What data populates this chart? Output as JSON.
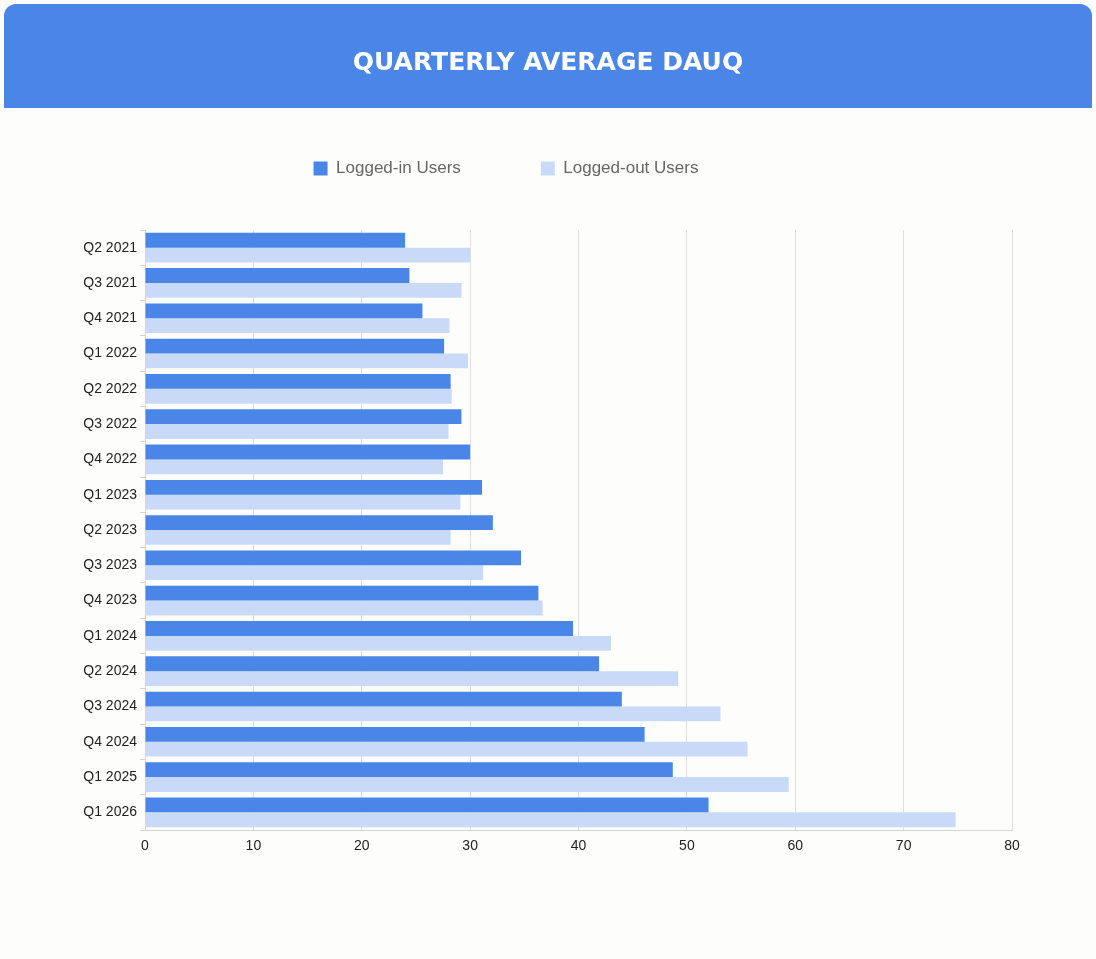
{
  "chart_data": {
    "type": "bar",
    "orientation": "horizontal",
    "title": "QUARTERLY AVERAGE DAUQ",
    "categories": [
      "Q2 2021",
      "Q3 2021",
      "Q4 2021",
      "Q1 2022",
      "Q2 2022",
      "Q3 2022",
      "Q4 2022",
      "Q1 2023",
      "Q2 2023",
      "Q3 2023",
      "Q4 2023",
      "Q1 2024",
      "Q2 2024",
      "Q3 2024",
      "Q4 2024",
      "Q1 2025",
      "Q1 2026"
    ],
    "series": [
      {
        "name": "Logged-in Users",
        "color": "#4a86e8",
        "values": [
          24,
          24.4,
          25.6,
          27.6,
          28.2,
          29.2,
          30,
          31.1,
          32.1,
          34.7,
          36.3,
          39.5,
          41.9,
          44,
          46.1,
          48.7,
          52
        ]
      },
      {
        "name": "Logged-out Users",
        "color": "#c9daf8",
        "values": [
          30,
          29.2,
          28.1,
          29.8,
          28.3,
          28,
          27.5,
          29.1,
          28.2,
          31.2,
          36.7,
          43,
          49.2,
          53.1,
          55.6,
          59.4,
          74.8
        ]
      }
    ],
    "xlim": [
      0,
      80
    ],
    "xticks": [
      0,
      10,
      20,
      30,
      40,
      50,
      60,
      70,
      80
    ],
    "grid": "x",
    "legend": "top"
  }
}
